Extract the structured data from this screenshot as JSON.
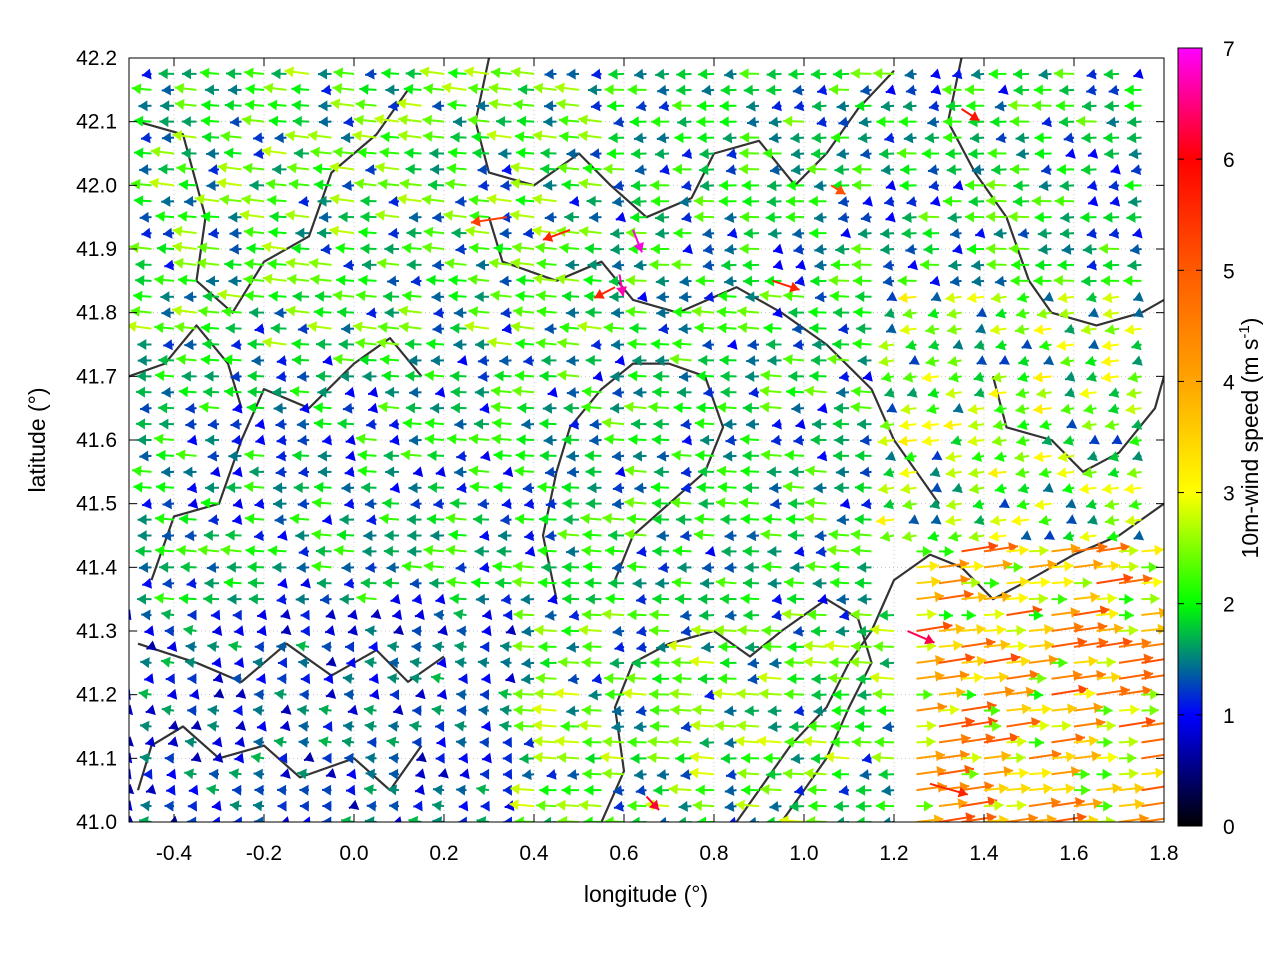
{
  "chart_data": {
    "type": "vector-field",
    "title": "",
    "xlabel": "longitude (°)",
    "ylabel": "latitude (°)",
    "xlim": [
      -0.5,
      1.8
    ],
    "ylim": [
      41.0,
      42.2
    ],
    "x_ticks": [
      "-0.4",
      "-0.2",
      "0.0",
      "0.2",
      "0.4",
      "0.6",
      "0.8",
      "1.0",
      "1.2",
      "1.4",
      "1.6",
      "1.8"
    ],
    "x_tick_values": [
      -0.4,
      -0.2,
      0.0,
      0.2,
      0.4,
      0.6,
      0.8,
      1.0,
      1.2,
      1.4,
      1.6,
      1.8
    ],
    "y_ticks": [
      "41.0",
      "41.1",
      "41.2",
      "41.3",
      "41.4",
      "41.5",
      "41.6",
      "41.7",
      "41.8",
      "41.9",
      "42.0",
      "42.1",
      "42.2"
    ],
    "y_tick_values": [
      41.0,
      41.1,
      41.2,
      41.3,
      41.4,
      41.5,
      41.6,
      41.7,
      41.8,
      41.9,
      42.0,
      42.1,
      42.2
    ],
    "grid": true,
    "colorbar": {
      "label_main": "10m-wind speed (m s",
      "label_sup": "-1",
      "label_end": ")",
      "range": [
        0,
        7
      ],
      "ticks": [
        "0",
        "1",
        "2",
        "3",
        "4",
        "5",
        "6",
        "7"
      ],
      "stops": [
        {
          "v": 0,
          "color": "#000000"
        },
        {
          "v": 1,
          "color": "#0000ff"
        },
        {
          "v": 2,
          "color": "#00ff00"
        },
        {
          "v": 3,
          "color": "#ffff00"
        },
        {
          "v": 4,
          "color": "#ffa500"
        },
        {
          "v": 5,
          "color": "#ff5a00"
        },
        {
          "v": 6,
          "color": "#ff0000"
        },
        {
          "v": 7,
          "color": "#ff00ff"
        }
      ]
    },
    "contour_color": "#333333",
    "wind_field": {
      "lon_start": -0.5,
      "lon_step": 0.05,
      "lon_count": 47,
      "lat_start": 41.0,
      "lat_step": 0.025,
      "lat_count": 49,
      "regions": [
        {
          "lon": [
            -0.5,
            0.4
          ],
          "lat": [
            41.0,
            41.35
          ],
          "u": -1.0,
          "v": 0.0,
          "speed": 1.2
        },
        {
          "lon": [
            -0.5,
            0.4
          ],
          "lat": [
            41.35,
            41.75
          ],
          "u": -1.6,
          "v": 0.0,
          "speed": 1.6
        },
        {
          "lon": [
            -0.5,
            0.6
          ],
          "lat": [
            41.75,
            42.2
          ],
          "u": -1.9,
          "v": 0.1,
          "speed": 1.9
        },
        {
          "lon": [
            0.4,
            1.2
          ],
          "lat": [
            41.35,
            41.85
          ],
          "u": -1.7,
          "v": 0.0,
          "speed": 1.7
        },
        {
          "lon": [
            0.4,
            1.25
          ],
          "lat": [
            41.0,
            41.35
          ],
          "u": -1.9,
          "v": 0.0,
          "speed": 2.0
        },
        {
          "lon": [
            0.6,
            1.8
          ],
          "lat": [
            41.85,
            42.2
          ],
          "u": -1.6,
          "v": -0.1,
          "speed": 1.7
        },
        {
          "lon": [
            1.2,
            1.8
          ],
          "lat": [
            41.45,
            41.85
          ],
          "u": -1.4,
          "v": -0.3,
          "speed": 2.2
        },
        {
          "lon": [
            1.25,
            1.8
          ],
          "lat": [
            41.0,
            41.45
          ],
          "u": 2.8,
          "v": 0.3,
          "speed": 3.6
        }
      ]
    },
    "strong_vectors": [
      {
        "lon": 0.62,
        "lat": 41.93,
        "u": 1.0,
        "v": -2.5,
        "speed": 6.9
      },
      {
        "lon": 0.59,
        "lat": 41.86,
        "u": 0.4,
        "v": -2.4,
        "speed": 6.7
      },
      {
        "lon": 0.58,
        "lat": 41.84,
        "u": -2.3,
        "v": -1.2,
        "speed": 5.6
      },
      {
        "lon": 0.48,
        "lat": 41.93,
        "u": -3.0,
        "v": -1.1,
        "speed": 5.6
      },
      {
        "lon": 0.34,
        "lat": 41.95,
        "u": -4.0,
        "v": -0.6,
        "speed": 5.3
      },
      {
        "lon": 1.35,
        "lat": 42.12,
        "u": 2.0,
        "v": -1.3,
        "speed": 5.8
      },
      {
        "lon": 0.93,
        "lat": 41.85,
        "u": 3.0,
        "v": -1.0,
        "speed": 5.6
      },
      {
        "lon": 1.06,
        "lat": 42.0,
        "u": 1.6,
        "v": -1.0,
        "speed": 5.1
      },
      {
        "lon": 1.23,
        "lat": 41.3,
        "u": 3.0,
        "v": -1.3,
        "speed": 6.3
      },
      {
        "lon": 1.28,
        "lat": 41.06,
        "u": 4.2,
        "v": -1.2,
        "speed": 5.6
      },
      {
        "lon": 0.65,
        "lat": 41.04,
        "u": 1.4,
        "v": -1.5,
        "speed": 6.2
      }
    ],
    "contours": [
      [
        [
          -0.48,
          41.05
        ],
        [
          -0.45,
          41.12
        ],
        [
          -0.38,
          41.15
        ],
        [
          -0.3,
          41.1
        ],
        [
          -0.2,
          41.12
        ],
        [
          -0.12,
          41.07
        ],
        [
          0.0,
          41.1
        ],
        [
          0.08,
          41.05
        ],
        [
          0.15,
          41.12
        ]
      ],
      [
        [
          -0.48,
          41.28
        ],
        [
          -0.35,
          41.25
        ],
        [
          -0.25,
          41.22
        ],
        [
          -0.15,
          41.28
        ],
        [
          -0.05,
          41.23
        ],
        [
          0.05,
          41.27
        ],
        [
          0.12,
          41.22
        ],
        [
          0.2,
          41.26
        ]
      ],
      [
        [
          -0.45,
          41.38
        ],
        [
          -0.4,
          41.48
        ],
        [
          -0.3,
          41.5
        ],
        [
          -0.25,
          41.6
        ],
        [
          -0.2,
          41.68
        ],
        [
          -0.1,
          41.65
        ],
        [
          0.0,
          41.72
        ],
        [
          0.08,
          41.76
        ],
        [
          0.15,
          41.7
        ]
      ],
      [
        [
          -0.48,
          42.1
        ],
        [
          -0.38,
          42.08
        ],
        [
          -0.33,
          41.95
        ],
        [
          -0.35,
          41.85
        ],
        [
          -0.27,
          41.8
        ],
        [
          -0.2,
          41.88
        ],
        [
          -0.1,
          41.92
        ],
        [
          -0.05,
          42.02
        ],
        [
          0.05,
          42.08
        ],
        [
          0.12,
          42.15
        ]
      ],
      [
        [
          0.3,
          42.2
        ],
        [
          0.27,
          42.1
        ],
        [
          0.3,
          42.02
        ],
        [
          0.4,
          42.0
        ],
        [
          0.5,
          42.05
        ],
        [
          0.57,
          42.0
        ],
        [
          0.65,
          41.95
        ],
        [
          0.75,
          41.98
        ],
        [
          0.8,
          42.05
        ],
        [
          0.9,
          42.07
        ],
        [
          0.98,
          42.0
        ],
        [
          1.05,
          42.05
        ],
        [
          1.12,
          42.12
        ],
        [
          1.2,
          42.18
        ]
      ],
      [
        [
          0.3,
          41.95
        ],
        [
          0.33,
          41.88
        ],
        [
          0.45,
          41.85
        ],
        [
          0.55,
          41.88
        ],
        [
          0.62,
          41.82
        ],
        [
          0.72,
          41.8
        ],
        [
          0.85,
          41.84
        ],
        [
          0.95,
          41.8
        ],
        [
          1.05,
          41.75
        ],
        [
          1.15,
          41.68
        ],
        [
          1.2,
          41.6
        ],
        [
          1.25,
          41.55
        ],
        [
          1.3,
          41.5
        ]
      ],
      [
        [
          0.45,
          41.35
        ],
        [
          0.42,
          41.45
        ],
        [
          0.45,
          41.55
        ],
        [
          0.48,
          41.62
        ],
        [
          0.55,
          41.68
        ],
        [
          0.62,
          41.72
        ],
        [
          0.7,
          41.72
        ],
        [
          0.78,
          41.7
        ],
        [
          0.82,
          41.62
        ],
        [
          0.78,
          41.55
        ],
        [
          0.7,
          41.5
        ],
        [
          0.62,
          41.45
        ],
        [
          0.58,
          41.38
        ]
      ],
      [
        [
          0.55,
          41.0
        ],
        [
          0.6,
          41.08
        ],
        [
          0.58,
          41.18
        ],
        [
          0.62,
          41.25
        ],
        [
          0.7,
          41.28
        ],
        [
          0.8,
          41.3
        ],
        [
          0.88,
          41.26
        ],
        [
          0.95,
          41.3
        ],
        [
          1.05,
          41.35
        ],
        [
          1.12,
          41.32
        ],
        [
          1.15,
          41.25
        ],
        [
          1.1,
          41.18
        ],
        [
          1.05,
          41.1
        ],
        [
          1.0,
          41.05
        ],
        [
          0.95,
          41.0
        ]
      ],
      [
        [
          0.85,
          41.0
        ],
        [
          0.9,
          41.05
        ],
        [
          0.97,
          41.12
        ],
        [
          1.05,
          41.18
        ],
        [
          1.1,
          41.25
        ],
        [
          1.15,
          41.3
        ],
        [
          1.2,
          41.38
        ],
        [
          1.28,
          41.42
        ],
        [
          1.35,
          41.4
        ],
        [
          1.42,
          41.35
        ],
        [
          1.5,
          41.38
        ],
        [
          1.6,
          41.42
        ],
        [
          1.7,
          41.45
        ],
        [
          1.8,
          41.5
        ]
      ],
      [
        [
          1.35,
          42.2
        ],
        [
          1.32,
          42.1
        ],
        [
          1.38,
          42.02
        ],
        [
          1.45,
          41.95
        ],
        [
          1.5,
          41.85
        ],
        [
          1.55,
          41.8
        ],
        [
          1.65,
          41.78
        ],
        [
          1.75,
          41.8
        ],
        [
          1.8,
          41.82
        ]
      ],
      [
        [
          1.42,
          41.7
        ],
        [
          1.45,
          41.62
        ],
        [
          1.55,
          41.6
        ],
        [
          1.62,
          41.55
        ],
        [
          1.7,
          41.58
        ],
        [
          1.78,
          41.65
        ],
        [
          1.8,
          41.7
        ]
      ],
      [
        [
          -0.5,
          41.7
        ],
        [
          -0.42,
          41.72
        ],
        [
          -0.35,
          41.78
        ],
        [
          -0.28,
          41.72
        ],
        [
          -0.25,
          41.65
        ]
      ]
    ]
  }
}
